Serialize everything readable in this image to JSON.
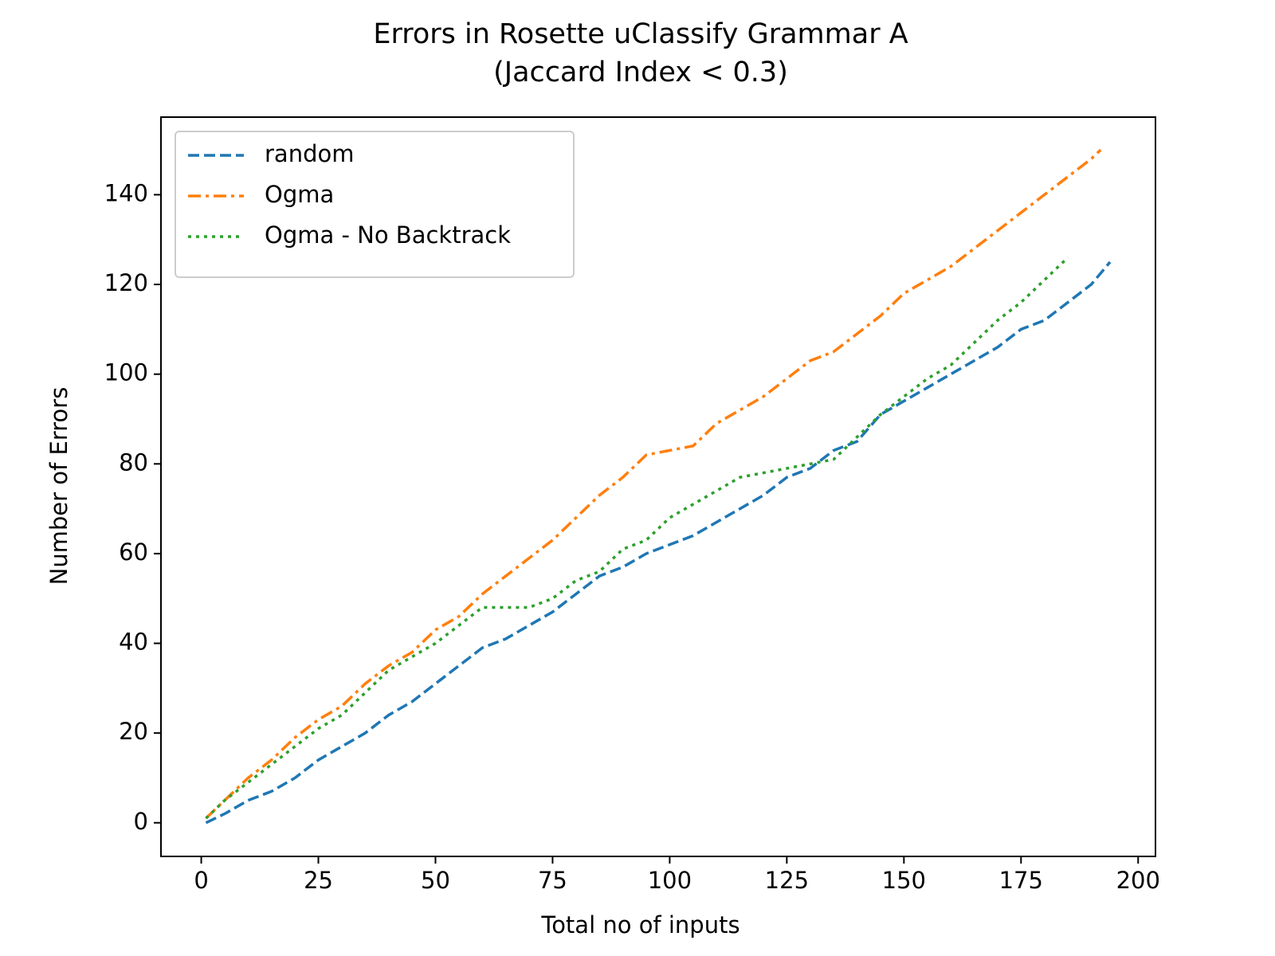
{
  "chart_data": {
    "type": "line",
    "title": "Errors in Rosette uClassify Grammar A",
    "subtitle": "(Jaccard Index < 0.3)",
    "xlabel": "Total no of inputs",
    "ylabel": "Number of Errors",
    "xlim": [
      -8.6,
      203.7
    ],
    "ylim": [
      -7.5,
      157.3
    ],
    "xticks": [
      0,
      25,
      50,
      75,
      100,
      125,
      150,
      175,
      200
    ],
    "yticks": [
      0,
      20,
      40,
      60,
      80,
      100,
      120,
      140
    ],
    "legend": "upper left",
    "series": [
      {
        "name": "random",
        "color": "#1f77b4",
        "linestyle": "dashed",
        "x": [
          1,
          5,
          10,
          15,
          20,
          25,
          30,
          35,
          40,
          45,
          50,
          55,
          60,
          65,
          70,
          75,
          80,
          85,
          90,
          95,
          100,
          105,
          110,
          115,
          120,
          125,
          130,
          135,
          140,
          145,
          150,
          155,
          160,
          165,
          170,
          175,
          180,
          185,
          190,
          194
        ],
        "values": [
          0,
          2,
          5,
          7,
          10,
          14,
          17,
          20,
          24,
          27,
          31,
          35,
          39,
          41,
          44,
          47,
          51,
          55,
          57,
          60,
          62,
          64,
          67,
          70,
          73,
          77,
          79,
          83,
          85,
          91,
          94,
          97,
          100,
          103,
          106,
          110,
          112,
          116,
          120,
          125
        ]
      },
      {
        "name": "Ogma",
        "color": "#ff7f0e",
        "linestyle": "dashdot",
        "x": [
          1,
          5,
          10,
          15,
          20,
          25,
          30,
          35,
          40,
          45,
          50,
          55,
          60,
          65,
          70,
          75,
          80,
          85,
          90,
          95,
          100,
          105,
          110,
          115,
          120,
          125,
          130,
          135,
          140,
          145,
          150,
          155,
          160,
          165,
          170,
          175,
          180,
          185,
          190,
          192
        ],
        "values": [
          1,
          5,
          10,
          14,
          19,
          23,
          26,
          31,
          35,
          38,
          43,
          46,
          51,
          55,
          59,
          63,
          68,
          73,
          77,
          82,
          83,
          84,
          89,
          92,
          95,
          99,
          103,
          105,
          109,
          113,
          118,
          121,
          124,
          128,
          132,
          136,
          140,
          144,
          148,
          150
        ]
      },
      {
        "name": "Ogma - No Backtrack",
        "color": "#2ca02c",
        "linestyle": "dotted",
        "x": [
          1,
          5,
          10,
          15,
          20,
          25,
          30,
          35,
          40,
          45,
          50,
          55,
          60,
          65,
          70,
          75,
          80,
          85,
          90,
          95,
          100,
          105,
          110,
          115,
          120,
          125,
          130,
          135,
          140,
          145,
          150,
          155,
          160,
          165,
          170,
          175,
          180,
          185
        ],
        "values": [
          1,
          5,
          9,
          13,
          17,
          21,
          24,
          29,
          34,
          37,
          40,
          44,
          48,
          48,
          48,
          50,
          54,
          56,
          61,
          63,
          68,
          71,
          74,
          77,
          78,
          79,
          80,
          81,
          86,
          91,
          95,
          99,
          102,
          107,
          112,
          116,
          121,
          126
        ]
      }
    ]
  }
}
